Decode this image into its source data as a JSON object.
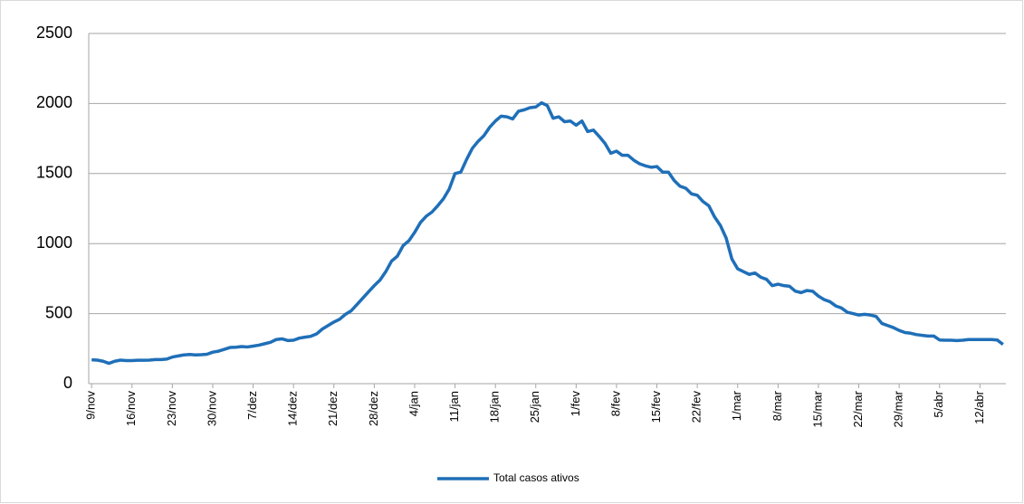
{
  "chart_data": {
    "type": "line",
    "categories": [
      "9/nov",
      null,
      null,
      null,
      null,
      null,
      null,
      "16/nov",
      null,
      null,
      null,
      null,
      null,
      null,
      "23/nov",
      null,
      null,
      null,
      null,
      null,
      null,
      "30/nov",
      null,
      null,
      null,
      null,
      null,
      null,
      "7/dez",
      null,
      null,
      null,
      null,
      null,
      null,
      "14/dez",
      null,
      null,
      null,
      null,
      null,
      null,
      "21/dez",
      null,
      null,
      null,
      null,
      null,
      null,
      "28/dez",
      null,
      null,
      null,
      null,
      null,
      null,
      "4/jan",
      null,
      null,
      null,
      null,
      null,
      null,
      "11/jan",
      null,
      null,
      null,
      null,
      null,
      null,
      "18/jan",
      null,
      null,
      null,
      null,
      null,
      null,
      "25/jan",
      null,
      null,
      null,
      null,
      null,
      null,
      "1/fev",
      null,
      null,
      null,
      null,
      null,
      null,
      "8/fev",
      null,
      null,
      null,
      null,
      null,
      null,
      "15/fev",
      null,
      null,
      null,
      null,
      null,
      null,
      "22/fev",
      null,
      null,
      null,
      null,
      null,
      null,
      "1/mar",
      null,
      null,
      null,
      null,
      null,
      null,
      "8/mar",
      null,
      null,
      null,
      null,
      null,
      null,
      "15/mar",
      null,
      null,
      null,
      null,
      null,
      null,
      "22/mar",
      null,
      null,
      null,
      null,
      null,
      null,
      "29/mar",
      null,
      null,
      null,
      null,
      null,
      null,
      "5/abr",
      null,
      null,
      null,
      null,
      null,
      null,
      "12/abr",
      null,
      null,
      null,
      null
    ],
    "series": [
      {
        "name": "Total casos ativos",
        "color": "#1f6fb8",
        "values": [
          170,
          168,
          160,
          145,
          160,
          168,
          165,
          165,
          167,
          167,
          168,
          172,
          172,
          175,
          190,
          198,
          205,
          208,
          205,
          207,
          210,
          225,
          232,
          245,
          258,
          260,
          265,
          262,
          268,
          275,
          285,
          295,
          315,
          320,
          308,
          310,
          325,
          332,
          338,
          355,
          390,
          415,
          440,
          460,
          495,
          520,
          565,
          610,
          655,
          700,
          740,
          800,
          875,
          910,
          985,
          1020,
          1080,
          1150,
          1195,
          1225,
          1270,
          1320,
          1390,
          1500,
          1510,
          1600,
          1680,
          1730,
          1770,
          1830,
          1875,
          1910,
          1905,
          1890,
          1945,
          1955,
          1970,
          1975,
          2005,
          1985,
          1895,
          1905,
          1870,
          1875,
          1845,
          1875,
          1800,
          1810,
          1765,
          1715,
          1645,
          1660,
          1630,
          1630,
          1595,
          1570,
          1555,
          1545,
          1550,
          1510,
          1510,
          1450,
          1410,
          1395,
          1355,
          1345,
          1300,
          1270,
          1190,
          1130,
          1040,
          890,
          820,
          800,
          780,
          790,
          760,
          745,
          700,
          710,
          700,
          695,
          660,
          650,
          665,
          660,
          625,
          600,
          585,
          555,
          540,
          510,
          500,
          490,
          495,
          490,
          480,
          430,
          415,
          400,
          380,
          365,
          360,
          350,
          345,
          340,
          340,
          312,
          310,
          310,
          308,
          310,
          315,
          315,
          315,
          315,
          315,
          312,
          280
        ]
      }
    ],
    "ylim": [
      0,
      2500
    ],
    "yticks": [
      0,
      500,
      1000,
      1500,
      2000,
      2500
    ],
    "grid": true,
    "legend": "bottom"
  }
}
